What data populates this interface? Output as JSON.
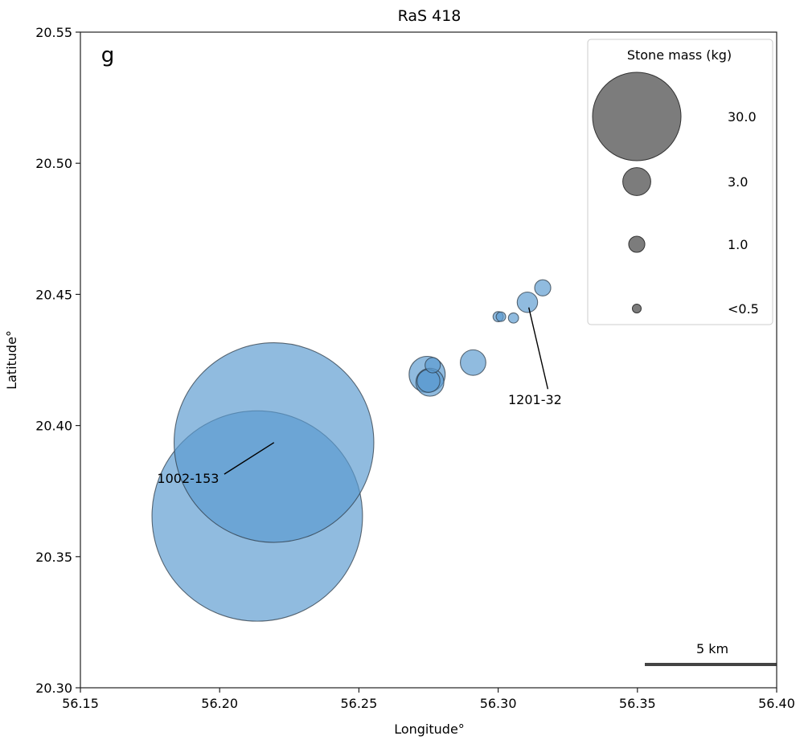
{
  "chart_data": {
    "type": "scatter",
    "title": "RaS 418",
    "panel_label": "g",
    "xlabel": "Longitude°",
    "ylabel": "Latitude°",
    "xlim": [
      56.15,
      56.4
    ],
    "ylim": [
      20.3,
      20.55
    ],
    "xticks": [
      "56.15",
      "56.20",
      "56.25",
      "56.30",
      "56.35",
      "56.40"
    ],
    "yticks": [
      "20.30",
      "20.35",
      "20.40",
      "20.45",
      "20.50",
      "20.55"
    ],
    "grid": false,
    "point_color": "#5b9bd0",
    "points": [
      {
        "lon": 56.2195,
        "lat": 20.3935,
        "mass_kg": 153
      },
      {
        "lon": 56.2135,
        "lat": 20.3655,
        "mass_kg": 170
      },
      {
        "lon": 56.2745,
        "lat": 20.4195,
        "mass_kg": 5
      },
      {
        "lon": 56.2755,
        "lat": 20.4165,
        "mass_kg": 3
      },
      {
        "lon": 56.275,
        "lat": 20.417,
        "mass_kg": 2
      },
      {
        "lon": 56.2765,
        "lat": 20.423,
        "mass_kg": 0.9
      },
      {
        "lon": 56.291,
        "lat": 20.424,
        "mass_kg": 2.5
      },
      {
        "lon": 56.3,
        "lat": 20.4415,
        "mass_kg": 0.4
      },
      {
        "lon": 56.301,
        "lat": 20.4415,
        "mass_kg": 0.35
      },
      {
        "lon": 56.3055,
        "lat": 20.441,
        "mass_kg": 0.4
      },
      {
        "lon": 56.3105,
        "lat": 20.447,
        "mass_kg": 1.6
      },
      {
        "lon": 56.316,
        "lat": 20.4525,
        "mass_kg": 1.0
      }
    ],
    "annotations": [
      {
        "text": "1002-153",
        "point": [
          56.2195,
          20.3935
        ],
        "text_pos": [
          56.193,
          20.379
        ]
      },
      {
        "text": "1201-32",
        "point": [
          56.311,
          20.445
        ],
        "text_pos": [
          56.319,
          20.409
        ]
      }
    ],
    "legend": {
      "title": "Stone mass (kg)",
      "placement": "top-right",
      "marker_color": "#6e6e6e",
      "entries": [
        {
          "label": "30.0",
          "mass_kg": 30
        },
        {
          "label": "3.0",
          "mass_kg": 3
        },
        {
          "label": "1.0",
          "mass_kg": 1
        },
        {
          "label": "<0.5",
          "mass_kg": 0.3
        }
      ]
    },
    "scalebar": {
      "label": "5 km",
      "placement": "bottom-right"
    }
  }
}
